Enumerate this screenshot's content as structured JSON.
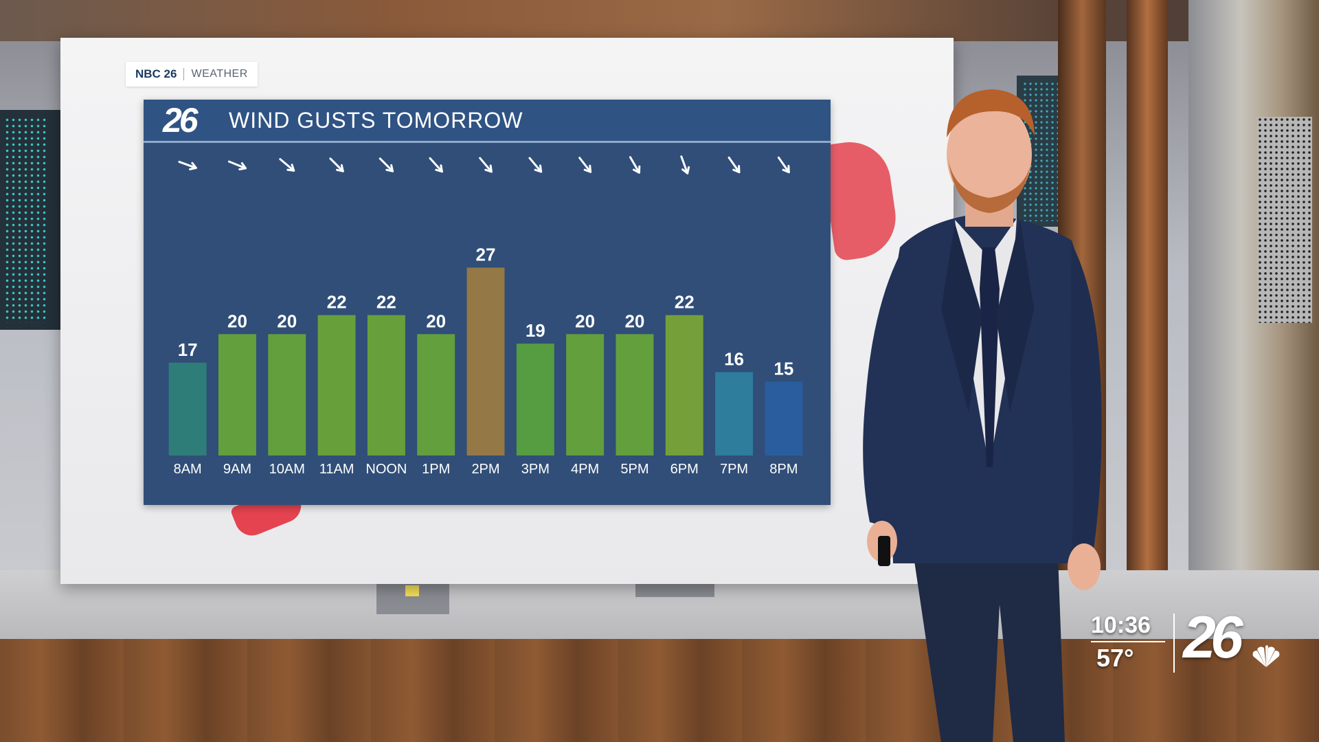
{
  "brand": {
    "station": "NBC 26",
    "section": "WEATHER",
    "logo_number": "26"
  },
  "chart_data": {
    "type": "bar",
    "title": "WIND GUSTS TOMORROW",
    "categories": [
      "8AM",
      "9AM",
      "10AM",
      "11AM",
      "NOON",
      "1PM",
      "2PM",
      "3PM",
      "4PM",
      "5PM",
      "6PM",
      "7PM",
      "8PM"
    ],
    "values": [
      17,
      20,
      20,
      22,
      22,
      20,
      27,
      19,
      20,
      20,
      22,
      16,
      15
    ],
    "bar_colors": [
      "#2e7f78",
      "#66a33a",
      "#66a33a",
      "#6aa437",
      "#6aa437",
      "#66a33a",
      "#9a7a43",
      "#59a03e",
      "#66a33a",
      "#66a33a",
      "#79a436",
      "#2e7f9e",
      "#2a5e9f"
    ],
    "wind_direction_arrows": [
      "down-right",
      "down-right",
      "down-right",
      "down-right",
      "down-right",
      "down-right",
      "down-right",
      "down-right",
      "down-right",
      "down-right",
      "down-right",
      "down-right",
      "down-right"
    ],
    "arrow_angle_deg": [
      20,
      22,
      40,
      45,
      45,
      48,
      50,
      50,
      52,
      60,
      70,
      55,
      55
    ],
    "ylim": [
      0,
      30
    ],
    "grid": false,
    "legend": "none"
  },
  "bug": {
    "time": "10:36",
    "temp": "57°",
    "logo_number": "26"
  }
}
